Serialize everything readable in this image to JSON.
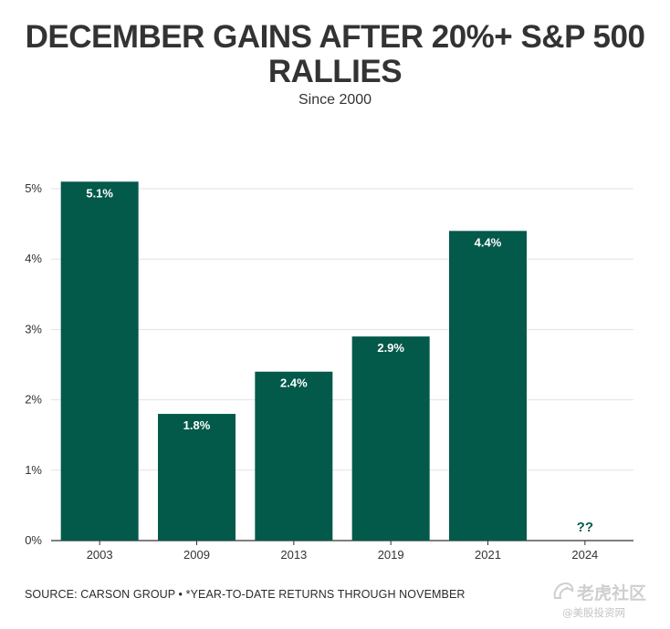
{
  "title": "DECEMBER GAINS AFTER 20%+ S&P 500 RALLIES",
  "subtitle": "Since 2000",
  "footer": "SOURCE: CARSON GROUP • *YEAR-TO-DATE RETURNS THROUGH NOVEMBER",
  "watermark": {
    "brand": "老虎社区",
    "sub": "@美股投资网"
  },
  "colors": {
    "bar": "#03594a",
    "bar_label": "#ffffff",
    "pending_label": "#03594a",
    "grid": "#e2e2e2",
    "axis": "#333333"
  },
  "chart_data": {
    "type": "bar",
    "title": "DECEMBER GAINS AFTER 20%+ S&P 500 RALLIES",
    "subtitle": "Since 2000",
    "xlabel": "",
    "ylabel": "",
    "categories": [
      "2003",
      "2009",
      "2013",
      "2019",
      "2021",
      "2024"
    ],
    "values": [
      5.1,
      1.8,
      2.4,
      2.9,
      4.4,
      null
    ],
    "data_labels": [
      "5.1%",
      "1.8%",
      "2.4%",
      "2.9%",
      "4.4%",
      "??"
    ],
    "ylim": [
      0,
      5
    ],
    "yticks": [
      0,
      1,
      2,
      3,
      4,
      5
    ],
    "ytick_labels": [
      "0%",
      "1%",
      "2%",
      "3%",
      "4%",
      "5%"
    ],
    "grid": true,
    "legend": "none"
  }
}
